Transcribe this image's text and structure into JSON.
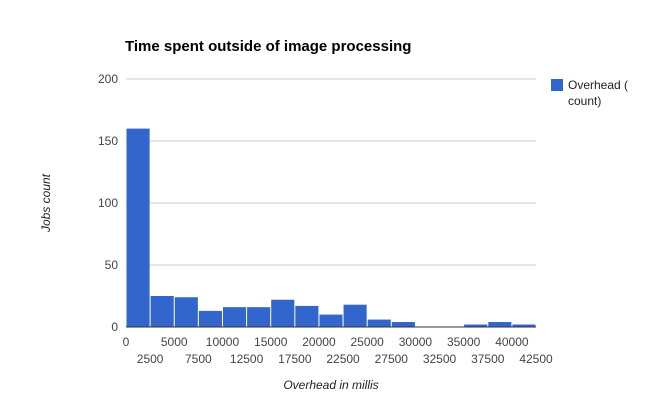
{
  "chart_data": {
    "type": "bar",
    "title": "Time spent outside of image processing",
    "xlabel": "Overhead in millis",
    "ylabel": "Jobs count",
    "ylim": [
      0,
      200
    ],
    "yticks": [
      0,
      50,
      100,
      150,
      200
    ],
    "xlim": [
      0,
      42500
    ],
    "xticks_upper": [
      "0",
      "5000",
      "10000",
      "15000",
      "20000",
      "25000",
      "30000",
      "35000",
      "40000"
    ],
    "xticks_lower": [
      "2500",
      "7500",
      "12500",
      "17500",
      "22500",
      "27500",
      "32500",
      "37500",
      "42500"
    ],
    "bin_width": 2500,
    "x": [
      0,
      2500,
      5000,
      7500,
      10000,
      12500,
      15000,
      17500,
      20000,
      22500,
      25000,
      27500,
      30000,
      32500,
      35000,
      37500,
      40000
    ],
    "values": [
      160,
      25,
      24,
      13,
      16,
      16,
      22,
      17,
      10,
      18,
      6,
      4,
      0,
      0,
      2,
      4,
      2
    ],
    "series": [
      {
        "name": "Overhead ( count)",
        "color": "#3366cc"
      }
    ],
    "legend": {
      "position": "right",
      "line1": "Overhead (",
      "line2": "count)"
    },
    "grid": true,
    "colors": {
      "bar": "#3366cc",
      "grid": "#cccccc",
      "axis": "#333333"
    }
  }
}
